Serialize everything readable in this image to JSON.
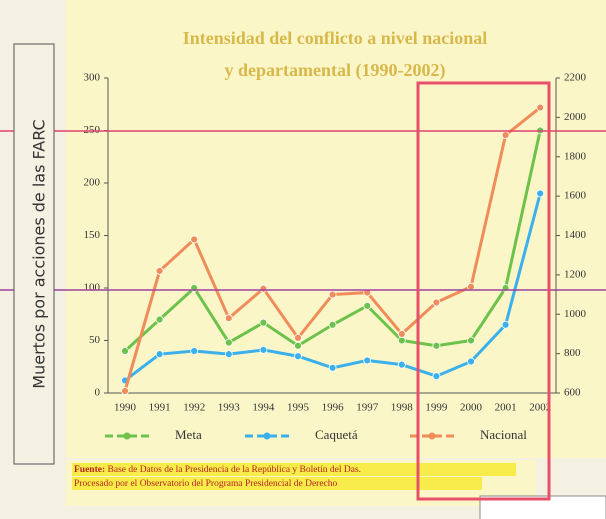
{
  "chart_data": {
    "type": "line",
    "title": [
      "Intensidad del conflicto a nivel nacional",
      "y departamental (1990-2002)"
    ],
    "categories": [
      "1990",
      "1991",
      "1992",
      "1993",
      "1994",
      "1995",
      "1996",
      "1997",
      "1998",
      "1999",
      "2000",
      "2001",
      "2002"
    ],
    "series": [
      {
        "name": "Meta",
        "color": "#6cc24a",
        "values": [
          40,
          70,
          100,
          48,
          67,
          45,
          65,
          83,
          50,
          45,
          50,
          100,
          250
        ]
      },
      {
        "name": "Caquetá",
        "color": "#3ab0ec",
        "values": [
          12,
          37,
          40,
          37,
          41,
          35,
          24,
          31,
          27,
          16,
          30,
          65,
          190
        ]
      },
      {
        "name": "Nacional",
        "color": "#f08c5a",
        "axis": "y2",
        "values": [
          610,
          1220,
          1380,
          980,
          1130,
          880,
          1100,
          1110,
          900,
          1060,
          1140,
          1910,
          2050
        ]
      }
    ],
    "ylim": [
      0,
      300
    ],
    "yticks": [
      0,
      50,
      100,
      150,
      200,
      250,
      300
    ],
    "y2lim": [
      600,
      2200
    ],
    "y2ticks": [
      600,
      800,
      1000,
      1200,
      1400,
      1600,
      1800,
      2000,
      2200
    ],
    "legend": "bottom",
    "source": {
      "label": "Fuente:",
      "line1": "Base de Datos de la Presidencia de la República y Boletín del Das.",
      "line2": "Procesado por el Observatorio del Programa Presidencial de Derecho"
    }
  },
  "annotation": {
    "side_label": "Muertos por acciones de las FARC"
  }
}
